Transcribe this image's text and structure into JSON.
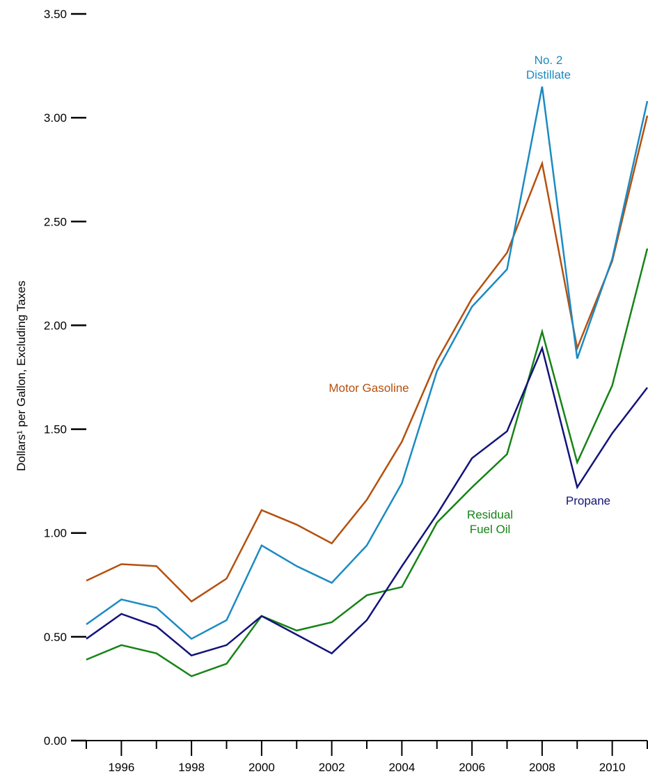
{
  "chart_data": {
    "type": "line",
    "ylabel": "Dollars¹ per Gallon, Excluding Taxes",
    "xlabel": "",
    "ylim": [
      0,
      3.5
    ],
    "xlim": [
      1995,
      2011
    ],
    "y_ticks": [
      "0.00",
      "0.50",
      "1.00",
      "1.50",
      "2.00",
      "2.50",
      "3.00",
      "3.50"
    ],
    "x_tick_labels": [
      "1996",
      "1998",
      "2000",
      "2002",
      "2004",
      "2006",
      "2008",
      "2010"
    ],
    "grid": false,
    "x": [
      1995,
      1996,
      1997,
      1998,
      1999,
      2000,
      2001,
      2002,
      2003,
      2004,
      2005,
      2006,
      2007,
      2008,
      2009,
      2010,
      2011
    ],
    "series": [
      {
        "name": "Motor Gasoline",
        "color": "#b5500f",
        "label_lines": [
          "Motor Gasoline"
        ],
        "values": [
          0.77,
          0.85,
          0.84,
          0.67,
          0.78,
          1.11,
          1.04,
          0.95,
          1.16,
          1.44,
          1.83,
          2.13,
          2.35,
          2.78,
          1.89,
          2.31,
          3.01
        ]
      },
      {
        "name": "No. 2 Distillate",
        "color": "#1b8ac2",
        "label_lines": [
          "No. 2",
          "Distillate"
        ],
        "values": [
          0.56,
          0.68,
          0.64,
          0.49,
          0.58,
          0.94,
          0.84,
          0.76,
          0.94,
          1.24,
          1.78,
          2.09,
          2.27,
          3.15,
          1.84,
          2.32,
          3.08
        ]
      },
      {
        "name": "Residual Fuel Oil",
        "color": "#168316",
        "label_lines": [
          "Residual",
          "Fuel Oil"
        ],
        "values": [
          0.39,
          0.46,
          0.42,
          0.31,
          0.37,
          0.6,
          0.53,
          0.57,
          0.7,
          0.74,
          1.05,
          1.22,
          1.38,
          1.97,
          1.34,
          1.71,
          2.37
        ]
      },
      {
        "name": "Propane",
        "color": "#13137a",
        "label_lines": [
          "Propane"
        ],
        "values": [
          0.49,
          0.61,
          0.55,
          0.41,
          0.46,
          0.6,
          0.51,
          0.42,
          0.58,
          0.84,
          1.09,
          1.36,
          1.49,
          1.89,
          1.22,
          1.48,
          1.7
        ]
      }
    ]
  }
}
